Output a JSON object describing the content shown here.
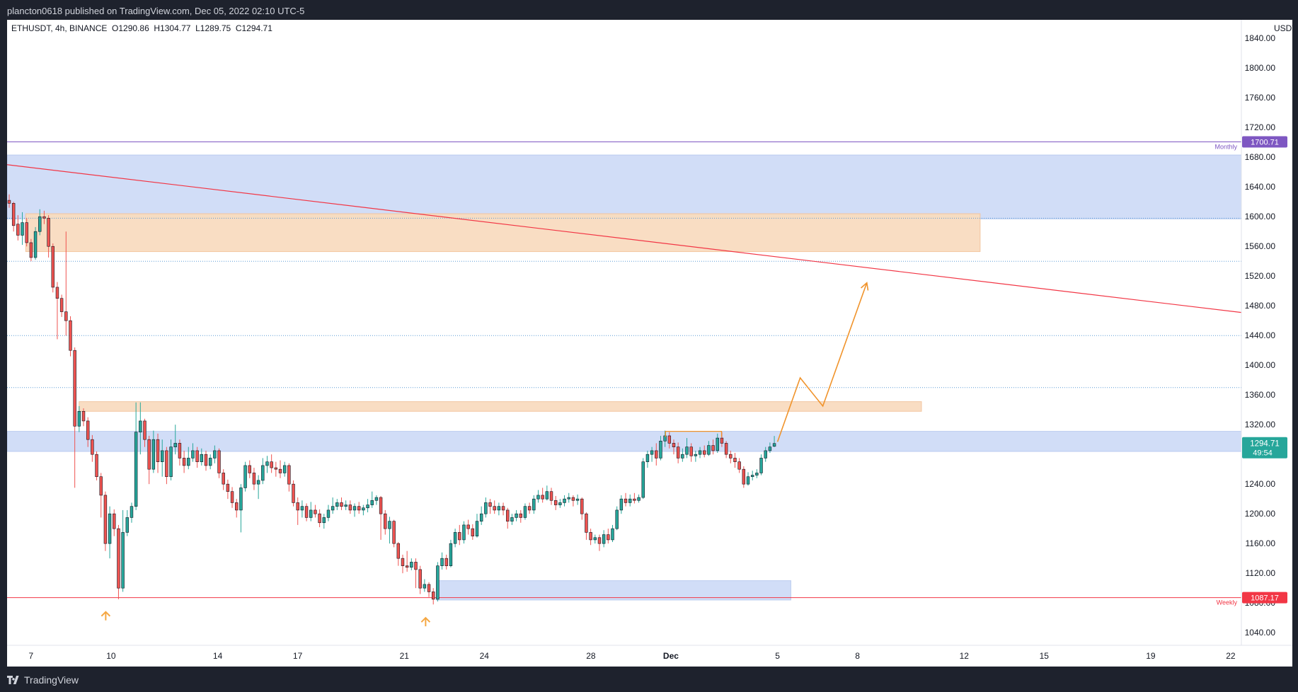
{
  "header": {
    "publish_text": "plancton0618 published on TradingView.com, Dec 05, 2022 02:10 UTC-5"
  },
  "footer": {
    "brand": "TradingView"
  },
  "colors": {
    "up": "#26a69a",
    "down": "#ef5350",
    "blue_zone": "#cfdcf7",
    "orange_zone": "#f9dcc0",
    "projection": "#f0932b",
    "monthly": "#7e57c2",
    "weekly": "#f23645",
    "price_tag": "#26a69a",
    "dotted": "#5b9bd5"
  },
  "chart_data": {
    "type": "candlestick",
    "title": "",
    "symbol": "ETHUSDT",
    "legend": "ETHUSDT, 4h, BINANCE  O1290.86  H1304.77  L1289.75  C1294.71",
    "ohlc": {
      "open": 1290.86,
      "high": 1304.77,
      "low": 1289.75,
      "close": 1294.71
    },
    "currency": "USDT",
    "y_ticks": [
      1040,
      1080,
      1120,
      1160,
      1200,
      1240,
      1280,
      1320,
      1360,
      1400,
      1440,
      1480,
      1520,
      1560,
      1600,
      1640,
      1680,
      1720,
      1760,
      1800,
      1840
    ],
    "y_tick_labels": [
      "1040.00",
      "1080.00",
      "1120.00",
      "1160.00",
      "1200.00",
      "1240.00",
      "1280.00",
      "1320.00",
      "1360.00",
      "1400.00",
      "1440.00",
      "1480.00",
      "1520.00",
      "1560.00",
      "1600.00",
      "1640.00",
      "1680.00",
      "1720.00",
      "1760.00",
      "1800.00",
      "1840.00"
    ],
    "ylim": [
      1023,
      1865
    ],
    "x_tick_labels": [
      "7",
      "10",
      "14",
      "17",
      "21",
      "24",
      "28",
      "Dec",
      "5",
      "8",
      "12",
      "15",
      "19",
      "22"
    ],
    "x_tick_days": [
      7,
      10,
      14,
      17,
      21,
      24,
      28,
      31,
      35,
      38,
      42,
      45,
      49,
      52
    ],
    "xlim": [
      6.1,
      52.4
    ],
    "current_price": {
      "label": "1294.71",
      "countdown": "49:54",
      "value": 1294.71
    },
    "levels": [
      {
        "name": "Monthly",
        "value": 1700.71,
        "label": "1700.71"
      },
      {
        "name": "Weekly",
        "value": 1087.17,
        "label": "1087.17"
      }
    ],
    "dotted_levels": [
      1598,
      1540,
      1440,
      1370
    ],
    "zones": [
      {
        "kind": "blue",
        "x_from": 6.1,
        "x_to": 52.4,
        "y_low": 1597,
        "y_high": 1683
      },
      {
        "kind": "orange",
        "x_from": 6.8,
        "x_to": 42.6,
        "y_low": 1553,
        "y_high": 1604
      },
      {
        "kind": "orange",
        "x_from": 8.8,
        "x_to": 40.4,
        "y_low": 1338,
        "y_high": 1351
      },
      {
        "kind": "blue",
        "x_from": 6.1,
        "x_to": 52.4,
        "y_low": 1284,
        "y_high": 1311
      },
      {
        "kind": "blue",
        "x_from": 22.2,
        "x_to": 35.5,
        "y_low": 1084,
        "y_high": 1110
      }
    ],
    "trendline": {
      "from": [
        6.1,
        1670
      ],
      "to": [
        52.4,
        1471
      ]
    },
    "projection": [
      [
        35.0,
        1297
      ],
      [
        35.85,
        1383
      ],
      [
        36.7,
        1345
      ],
      [
        38.35,
        1511
      ]
    ],
    "double_top": [
      [
        30.8,
        1311
      ],
      [
        32.9,
        1311
      ]
    ],
    "bottom_markers": [
      [
        9.8,
        1068
      ],
      [
        21.8,
        1060
      ]
    ],
    "candles": [
      [
        1622,
        1618,
        1630,
        1612
      ],
      [
        1618,
        1588,
        1620,
        1580
      ],
      [
        1590,
        1575,
        1602,
        1568
      ],
      [
        1575,
        1592,
        1606,
        1562
      ],
      [
        1592,
        1565,
        1598,
        1560
      ],
      [
        1565,
        1545,
        1570,
        1540
      ],
      [
        1545,
        1580,
        1586,
        1542
      ],
      [
        1580,
        1600,
        1610,
        1575
      ],
      [
        1600,
        1598,
        1608,
        1590
      ],
      [
        1598,
        1560,
        1602,
        1545
      ],
      [
        1560,
        1505,
        1564,
        1498
      ],
      [
        1505,
        1490,
        1512,
        1435
      ],
      [
        1490,
        1472,
        1495,
        1465
      ],
      [
        1472,
        1460,
        1580,
        1440
      ],
      [
        1460,
        1420,
        1466,
        1412
      ],
      [
        1420,
        1318,
        1424,
        1235
      ],
      [
        1318,
        1338,
        1345,
        1310
      ],
      [
        1338,
        1325,
        1342,
        1318
      ],
      [
        1325,
        1300,
        1330,
        1290
      ],
      [
        1300,
        1280,
        1306,
        1270
      ],
      [
        1280,
        1250,
        1284,
        1245
      ],
      [
        1250,
        1225,
        1255,
        1195
      ],
      [
        1225,
        1160,
        1230,
        1150
      ],
      [
        1160,
        1200,
        1210,
        1140
      ],
      [
        1200,
        1180,
        1206,
        1170
      ],
      [
        1180,
        1100,
        1185,
        1085
      ],
      [
        1100,
        1175,
        1205,
        1095
      ],
      [
        1175,
        1195,
        1205,
        1170
      ],
      [
        1195,
        1210,
        1215,
        1188
      ],
      [
        1210,
        1310,
        1350,
        1205
      ],
      [
        1310,
        1325,
        1350,
        1280
      ],
      [
        1325,
        1300,
        1328,
        1290
      ],
      [
        1300,
        1260,
        1305,
        1240
      ],
      [
        1260,
        1300,
        1312,
        1255
      ],
      [
        1300,
        1270,
        1308,
        1255
      ],
      [
        1270,
        1285,
        1300,
        1250
      ],
      [
        1285,
        1250,
        1290,
        1240
      ],
      [
        1250,
        1290,
        1300,
        1245
      ],
      [
        1290,
        1295,
        1320,
        1280
      ],
      [
        1295,
        1275,
        1300,
        1265
      ],
      [
        1275,
        1265,
        1285,
        1255
      ],
      [
        1265,
        1275,
        1290,
        1260
      ],
      [
        1275,
        1285,
        1295,
        1270
      ],
      [
        1285,
        1270,
        1290,
        1262
      ],
      [
        1270,
        1280,
        1288,
        1265
      ],
      [
        1280,
        1265,
        1285,
        1258
      ],
      [
        1265,
        1275,
        1280,
        1260
      ],
      [
        1275,
        1285,
        1292,
        1268
      ],
      [
        1285,
        1255,
        1288,
        1248
      ],
      [
        1255,
        1240,
        1260,
        1232
      ],
      [
        1240,
        1230,
        1246,
        1220
      ],
      [
        1230,
        1215,
        1236,
        1208
      ],
      [
        1215,
        1205,
        1220,
        1195
      ],
      [
        1205,
        1235,
        1240,
        1175
      ],
      [
        1235,
        1265,
        1270,
        1230
      ],
      [
        1265,
        1255,
        1272,
        1248
      ],
      [
        1255,
        1240,
        1262,
        1232
      ],
      [
        1240,
        1245,
        1252,
        1220
      ],
      [
        1245,
        1265,
        1275,
        1240
      ],
      [
        1265,
        1270,
        1278,
        1255
      ],
      [
        1270,
        1262,
        1280,
        1255
      ],
      [
        1262,
        1260,
        1270,
        1250
      ],
      [
        1260,
        1255,
        1272,
        1248
      ],
      [
        1255,
        1265,
        1270,
        1250
      ],
      [
        1265,
        1240,
        1268,
        1230
      ],
      [
        1240,
        1215,
        1245,
        1210
      ],
      [
        1215,
        1205,
        1222,
        1185
      ],
      [
        1205,
        1210,
        1218,
        1195
      ],
      [
        1210,
        1195,
        1214,
        1190
      ],
      [
        1195,
        1205,
        1216,
        1190
      ],
      [
        1205,
        1200,
        1212,
        1195
      ],
      [
        1200,
        1188,
        1206,
        1182
      ],
      [
        1188,
        1195,
        1200,
        1180
      ],
      [
        1195,
        1205,
        1212,
        1190
      ],
      [
        1205,
        1210,
        1222,
        1200
      ],
      [
        1210,
        1215,
        1220,
        1205
      ],
      [
        1215,
        1210,
        1222,
        1205
      ],
      [
        1210,
        1212,
        1218,
        1205
      ],
      [
        1212,
        1205,
        1218,
        1200
      ],
      [
        1205,
        1210,
        1214,
        1196
      ],
      [
        1210,
        1205,
        1216,
        1200
      ],
      [
        1205,
        1208,
        1212,
        1198
      ],
      [
        1208,
        1212,
        1220,
        1202
      ],
      [
        1212,
        1218,
        1230,
        1208
      ],
      [
        1218,
        1222,
        1225,
        1212
      ],
      [
        1222,
        1200,
        1224,
        1165
      ],
      [
        1200,
        1180,
        1205,
        1172
      ],
      [
        1180,
        1190,
        1196,
        1160
      ],
      [
        1190,
        1160,
        1192,
        1155
      ],
      [
        1160,
        1140,
        1162,
        1130
      ],
      [
        1140,
        1130,
        1145,
        1120
      ],
      [
        1130,
        1128,
        1150,
        1122
      ],
      [
        1128,
        1135,
        1140,
        1124
      ],
      [
        1135,
        1125,
        1140,
        1100
      ],
      [
        1125,
        1100,
        1130,
        1092
      ],
      [
        1100,
        1105,
        1112,
        1095
      ],
      [
        1105,
        1095,
        1108,
        1088
      ],
      [
        1095,
        1085,
        1100,
        1078
      ],
      [
        1085,
        1130,
        1135,
        1082
      ],
      [
        1130,
        1140,
        1148,
        1125
      ],
      [
        1140,
        1130,
        1145,
        1125
      ],
      [
        1130,
        1160,
        1165,
        1128
      ],
      [
        1160,
        1175,
        1180,
        1155
      ],
      [
        1175,
        1165,
        1185,
        1158
      ],
      [
        1165,
        1185,
        1190,
        1160
      ],
      [
        1185,
        1180,
        1192,
        1172
      ],
      [
        1180,
        1170,
        1186,
        1165
      ],
      [
        1170,
        1190,
        1200,
        1168
      ],
      [
        1190,
        1200,
        1210,
        1185
      ],
      [
        1200,
        1215,
        1222,
        1195
      ],
      [
        1215,
        1210,
        1220,
        1200
      ],
      [
        1210,
        1205,
        1218,
        1200
      ],
      [
        1205,
        1210,
        1215,
        1198
      ],
      [
        1210,
        1205,
        1215,
        1198
      ],
      [
        1205,
        1190,
        1208,
        1180
      ],
      [
        1190,
        1195,
        1200,
        1185
      ],
      [
        1195,
        1200,
        1205,
        1190
      ],
      [
        1200,
        1195,
        1205,
        1188
      ],
      [
        1195,
        1210,
        1214,
        1192
      ],
      [
        1210,
        1205,
        1215,
        1200
      ],
      [
        1205,
        1220,
        1225,
        1200
      ],
      [
        1220,
        1225,
        1232,
        1215
      ],
      [
        1225,
        1220,
        1235,
        1215
      ],
      [
        1220,
        1230,
        1238,
        1218
      ],
      [
        1230,
        1218,
        1235,
        1212
      ],
      [
        1218,
        1212,
        1224,
        1205
      ],
      [
        1212,
        1215,
        1220,
        1208
      ],
      [
        1215,
        1220,
        1225,
        1210
      ],
      [
        1220,
        1222,
        1228,
        1215
      ],
      [
        1222,
        1218,
        1225,
        1210
      ],
      [
        1218,
        1220,
        1226,
        1212
      ],
      [
        1220,
        1200,
        1222,
        1192
      ],
      [
        1200,
        1175,
        1202,
        1165
      ],
      [
        1175,
        1165,
        1180,
        1158
      ],
      [
        1165,
        1168,
        1172,
        1160
      ],
      [
        1168,
        1160,
        1172,
        1150
      ],
      [
        1160,
        1172,
        1178,
        1155
      ],
      [
        1172,
        1165,
        1180,
        1160
      ],
      [
        1165,
        1180,
        1185,
        1162
      ],
      [
        1180,
        1205,
        1210,
        1178
      ],
      [
        1205,
        1220,
        1225,
        1200
      ],
      [
        1220,
        1215,
        1228,
        1210
      ],
      [
        1215,
        1220,
        1226,
        1210
      ],
      [
        1220,
        1218,
        1228,
        1214
      ],
      [
        1218,
        1222,
        1226,
        1215
      ],
      [
        1222,
        1270,
        1275,
        1220
      ],
      [
        1270,
        1280,
        1285,
        1262
      ],
      [
        1280,
        1285,
        1290,
        1270
      ],
      [
        1285,
        1275,
        1295,
        1265
      ],
      [
        1275,
        1298,
        1305,
        1272
      ],
      [
        1298,
        1305,
        1312,
        1290
      ],
      [
        1305,
        1295,
        1310,
        1288
      ],
      [
        1295,
        1290,
        1300,
        1280
      ],
      [
        1290,
        1275,
        1296,
        1268
      ],
      [
        1275,
        1280,
        1288,
        1270
      ],
      [
        1280,
        1290,
        1302,
        1275
      ],
      [
        1290,
        1278,
        1295,
        1270
      ],
      [
        1278,
        1280,
        1285,
        1270
      ],
      [
        1280,
        1285,
        1290,
        1275
      ],
      [
        1285,
        1280,
        1292,
        1276
      ],
      [
        1280,
        1292,
        1298,
        1278
      ],
      [
        1292,
        1285,
        1300,
        1280
      ],
      [
        1285,
        1302,
        1308,
        1282
      ],
      [
        1302,
        1295,
        1310,
        1290
      ],
      [
        1295,
        1280,
        1298,
        1275
      ],
      [
        1280,
        1275,
        1285,
        1268
      ],
      [
        1275,
        1270,
        1282,
        1262
      ],
      [
        1270,
        1260,
        1275,
        1255
      ],
      [
        1260,
        1240,
        1264,
        1235
      ],
      [
        1240,
        1250,
        1256,
        1238
      ],
      [
        1250,
        1252,
        1258,
        1245
      ],
      [
        1252,
        1255,
        1260,
        1248
      ],
      [
        1255,
        1275,
        1280,
        1252
      ],
      [
        1275,
        1285,
        1290,
        1270
      ],
      [
        1285,
        1290,
        1296,
        1282
      ],
      [
        1290.86,
        1294.71,
        1304.77,
        1289.75
      ]
    ]
  }
}
